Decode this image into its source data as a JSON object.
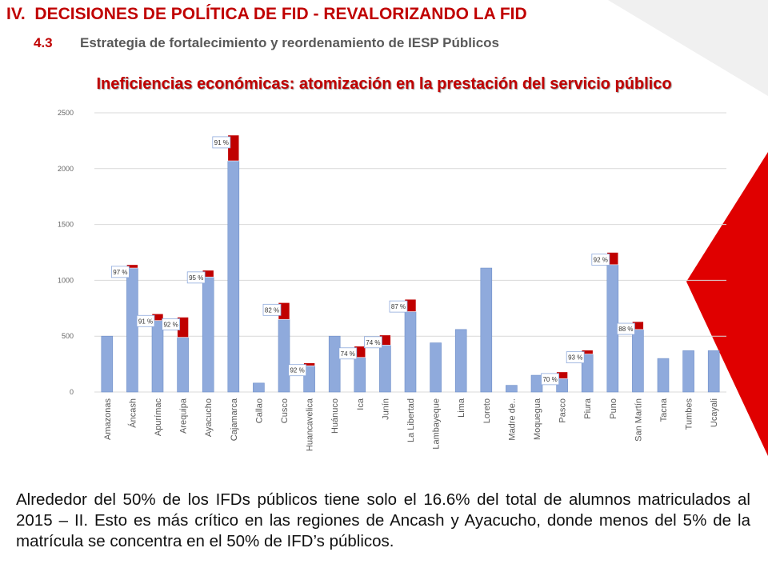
{
  "header": {
    "title": "IV.  DECISIONES DE POLÍTICA DE FID - REVALORIZANDO LA FID",
    "number": "4.3",
    "subtitle": "Estrategia de fortalecimiento y reordenamiento de IESP Públicos"
  },
  "chart_data": {
    "type": "stacked-bar",
    "title": "Ineficiencias económicas: atomización en la prestación del servicio público",
    "categories": [
      "Amazonas",
      "Áncash",
      "Apurímac",
      "Arequipa",
      "Ayacucho",
      "Cajamarca",
      "Callao",
      "Cusco",
      "Huancavelica",
      "Huánuco",
      "Ica",
      "Junín",
      "La Libertad",
      "Lambayeque",
      "Lima",
      "Loreto",
      "Madre de..",
      "Moquegua",
      "Pasco",
      "Piura",
      "Puno",
      "San Martín",
      "Tacna",
      "Tumbes",
      "Ucayali"
    ],
    "series": [
      {
        "color": "#8faadc",
        "values": [
          500,
          1110,
          640,
          490,
          1030,
          2070,
          80,
          650,
          235,
          500,
          310,
          420,
          720,
          440,
          560,
          1110,
          60,
          150,
          120,
          340,
          1140,
          560,
          300,
          370,
          370
        ]
      },
      {
        "color": "#c00000",
        "values": [
          0,
          30,
          60,
          180,
          60,
          230,
          0,
          150,
          25,
          0,
          100,
          90,
          110,
          0,
          0,
          0,
          0,
          0,
          60,
          35,
          110,
          70,
          0,
          0,
          0
        ]
      }
    ],
    "share_labels": [
      null,
      "97 %",
      "91 %",
      "92 %",
      "95 %",
      "91 %",
      null,
      "82 %",
      "92 %",
      null,
      "74 %",
      "74 %",
      "87 %",
      null,
      null,
      null,
      null,
      null,
      "70 %",
      "93 %",
      "92 %",
      "88 %",
      null,
      null,
      null
    ],
    "ylim": [
      0,
      2500
    ],
    "yticks": [
      0,
      500,
      1000,
      1500,
      2000,
      2500
    ],
    "grid": true
  },
  "body": {
    "text": "Alrededor del 50% de los IFDs públicos tiene solo el 16.6% del total de alumnos matriculados al 2015 – II. Esto es más crítico en las regiones de Ancash y Ayacucho, donde menos del 5% de la matrícula se concentra en el 50% de IFD’s públicos."
  }
}
